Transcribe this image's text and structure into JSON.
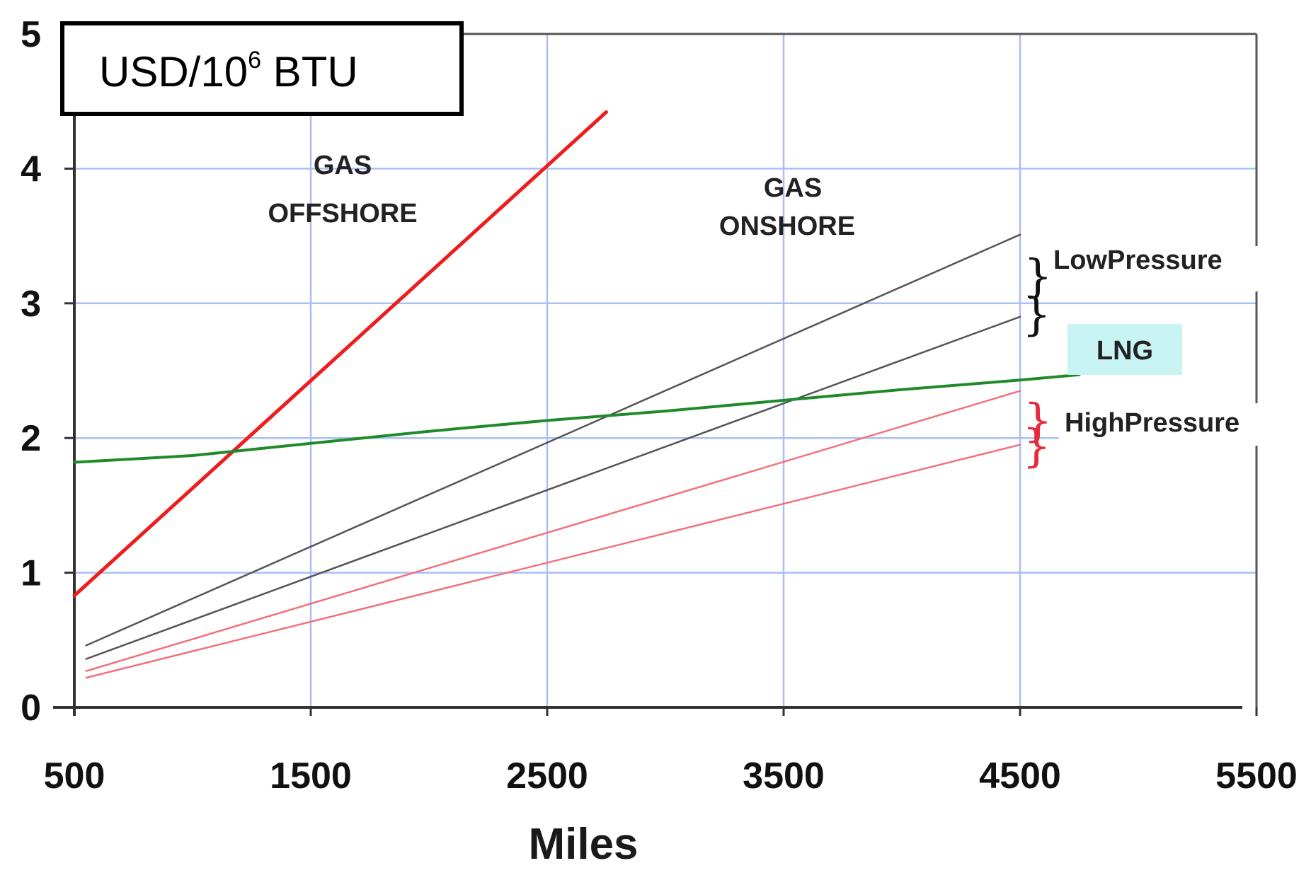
{
  "chart_data": {
    "type": "line",
    "title": "",
    "unit_label": {
      "main": "USD/10",
      "sup": "6",
      "tail": " BTU"
    },
    "xlabel": "Miles",
    "ylabel": "",
    "xlim": [
      500,
      5500
    ],
    "ylim": [
      0,
      5
    ],
    "xticks": [
      500,
      1500,
      2500,
      3500,
      4500,
      5500
    ],
    "yticks": [
      0,
      1,
      2,
      3,
      4,
      5
    ],
    "grid": true,
    "colors": {
      "grid": "#a9bff5",
      "gas_offshore": "#ee1c1c",
      "low_pressure": "#555555",
      "high_pressure": "#f3707e",
      "lng": "#1f8a2a",
      "lng_label_bg": "#c8f4f4",
      "brace_low": "#111111",
      "brace_high": "#e8283c"
    },
    "series": [
      {
        "key": "gas_offshore",
        "x": [
          500,
          2750
        ],
        "y": [
          0.83,
          4.42
        ]
      },
      {
        "key": "low_pressure_upper",
        "x": [
          550,
          4500
        ],
        "y": [
          0.46,
          3.51
        ]
      },
      {
        "key": "low_pressure_lower",
        "x": [
          550,
          4500
        ],
        "y": [
          0.36,
          2.9
        ]
      },
      {
        "key": "high_pressure_upper",
        "x": [
          550,
          4500
        ],
        "y": [
          0.27,
          2.35
        ]
      },
      {
        "key": "high_pressure_lower",
        "x": [
          550,
          4500
        ],
        "y": [
          0.22,
          1.95
        ]
      },
      {
        "key": "lng",
        "x": [
          500,
          1000,
          1500,
          2000,
          2500,
          3000,
          3500,
          4000,
          4500,
          4750
        ],
        "y": [
          1.82,
          1.87,
          1.96,
          2.05,
          2.13,
          2.2,
          2.28,
          2.36,
          2.43,
          2.47
        ]
      }
    ],
    "annotations": {
      "gas_offshore": [
        "GAS",
        "OFFSHORE"
      ],
      "gas_onshore": [
        "GAS",
        "ONSHORE"
      ],
      "low_pressure": "LowPressure",
      "lng": "LNG",
      "high_pressure": "HighPressure"
    }
  }
}
